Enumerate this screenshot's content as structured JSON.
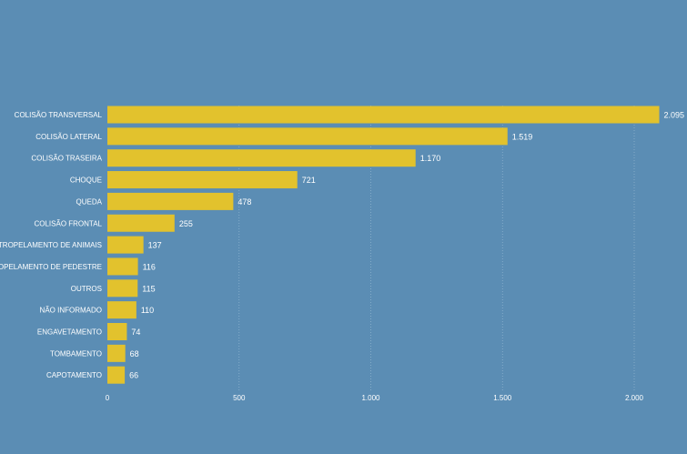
{
  "chart_data": {
    "type": "bar",
    "orientation": "horizontal",
    "categories": [
      "COLISÃO TRANSVERSAL",
      "COLISÃO LATERAL",
      "COLISÃO TRASEIRA",
      "CHOQUE",
      "QUEDA",
      "COLISÃO FRONTAL",
      "ATROPELAMENTO DE ANIMAIS",
      "ATROPELAMENTO DE PEDESTRE",
      "OUTROS",
      "NÃO INFORMADO",
      "ENGAVETAMENTO",
      "TOMBAMENTO",
      "CAPOTAMENTO"
    ],
    "values": [
      2095,
      1519,
      1170,
      721,
      478,
      255,
      137,
      116,
      115,
      110,
      74,
      68,
      66
    ],
    "value_labels": [
      "2.095",
      "1.519",
      "1.170",
      "721",
      "478",
      "255",
      "137",
      "116",
      "115",
      "110",
      "74",
      "68",
      "66"
    ],
    "xlim": [
      0,
      2100
    ],
    "x_ticks": [
      0,
      500,
      1000,
      1500,
      2000
    ],
    "x_tick_labels": [
      "0",
      "500",
      "1.000",
      "1.500",
      "2.000"
    ],
    "grid": true,
    "bar_color": "#e2c22d",
    "background_color": "#5b8db4"
  }
}
